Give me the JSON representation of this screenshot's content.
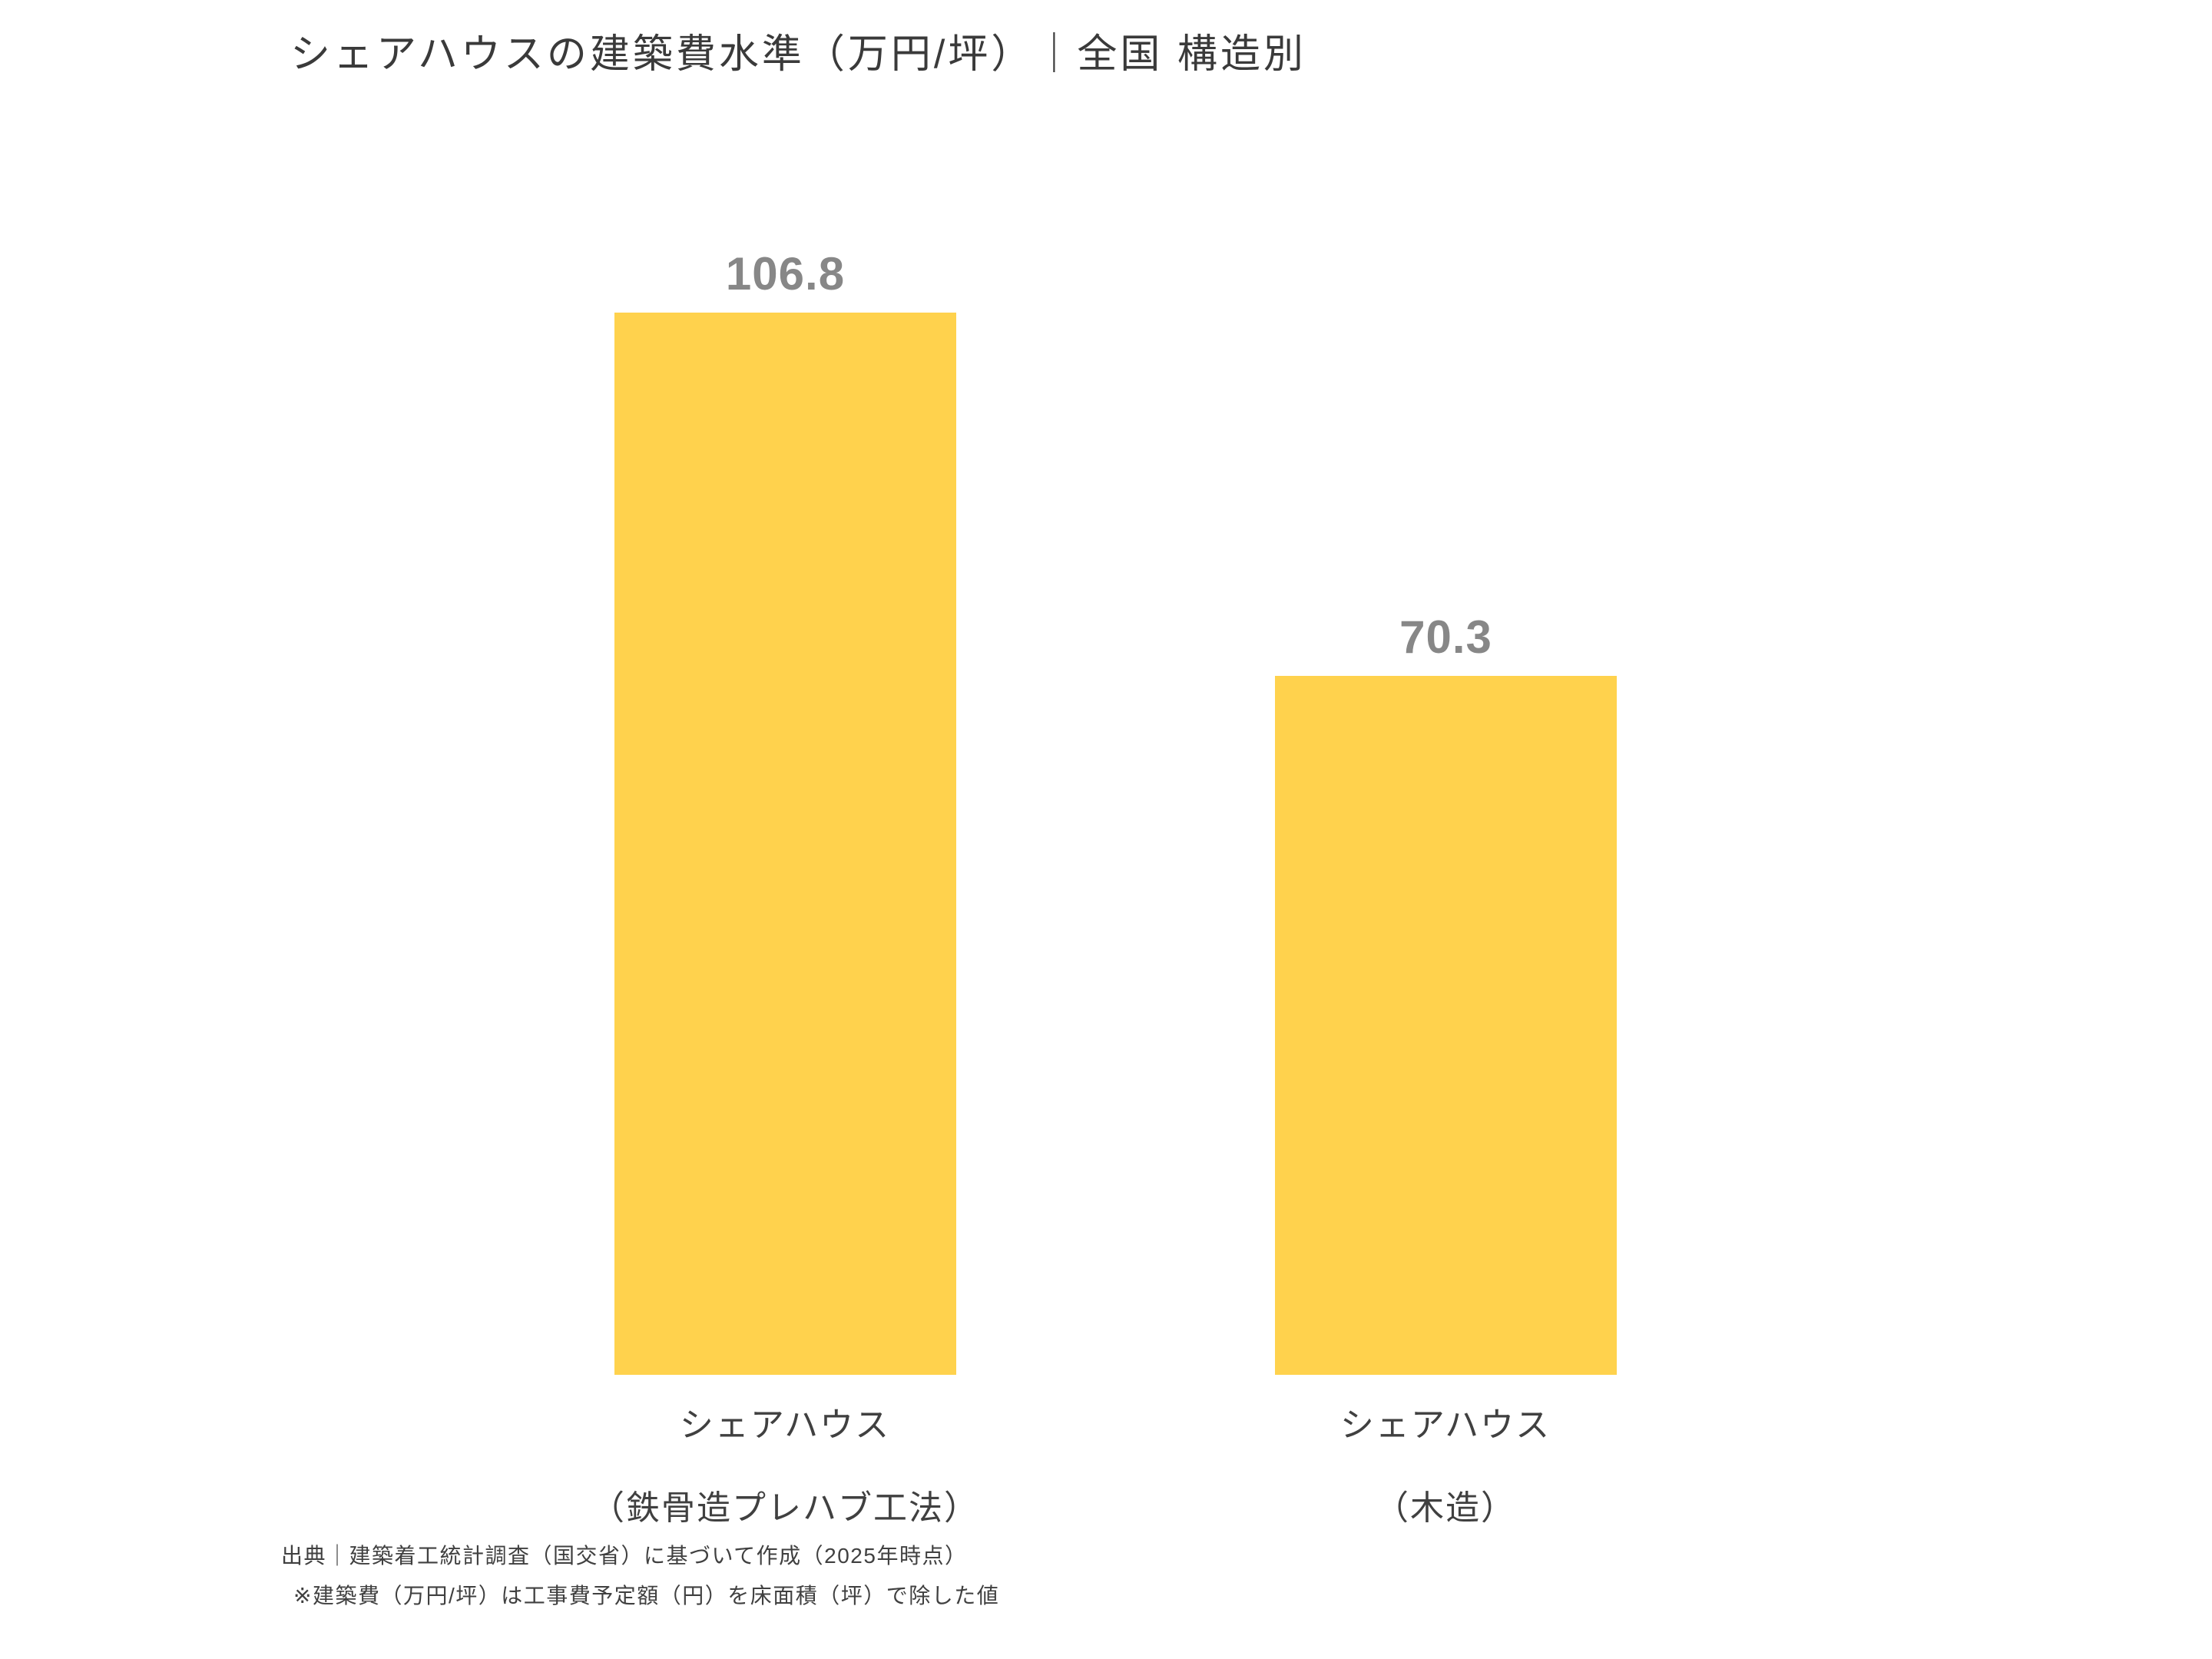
{
  "title": "シェアハウスの建築費水準（万円/坪）｜全国 構造別",
  "chart_data": {
    "type": "bar",
    "title": "シェアハウスの建築費水準（万円/坪）｜全国 構造別",
    "categories": [
      "シェアハウス（鉄骨造プレハブ工法）",
      "シェアハウス（木造）"
    ],
    "category_lines": [
      [
        "シェアハウス",
        "（鉄骨造プレハブ工法）"
      ],
      [
        "シェアハウス",
        "（木造）"
      ]
    ],
    "values": [
      106.8,
      70.3
    ],
    "value_labels": [
      "106.8",
      "70.3"
    ],
    "unit": "万円/坪",
    "xlabel": "",
    "ylabel": "",
    "ylim": [
      0,
      138
    ],
    "grid": false,
    "legend": false,
    "axes_visible": false,
    "colors": {
      "bar_fill": "#FFD24D",
      "value_label": "#878787",
      "title_text": "#3A3A3A",
      "category_text": "#404040",
      "footer_text": "#404040",
      "background": "#FFFFFF"
    }
  },
  "footer": {
    "source_line": "出典｜建築着工統計調査（国交省）に基づいて作成（2025年時点）",
    "note_line": "※建築費（万円/坪）は工事費予定額（円）を床面積（坪）で除した値"
  }
}
